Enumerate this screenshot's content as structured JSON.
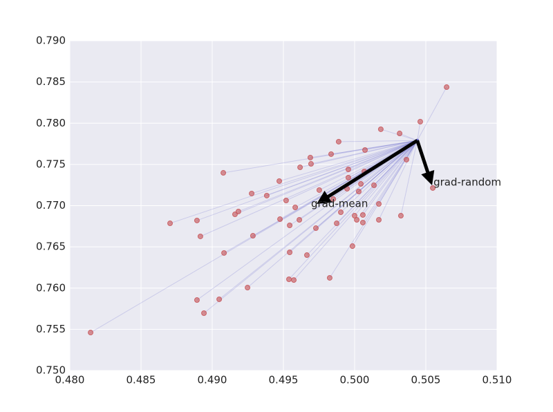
{
  "chart_data": {
    "type": "scatter",
    "xlim": [
      0.48,
      0.51
    ],
    "ylim": [
      0.75,
      0.79
    ],
    "xticks": [
      {
        "value": 0.48,
        "label": "0.480"
      },
      0.485,
      {
        "value": 0.49,
        "label": "0.490"
      },
      0.495,
      {
        "value": 0.5,
        "label": "0.500"
      },
      0.505,
      {
        "value": 0.51,
        "label": "0.510"
      }
    ],
    "yticks": [
      {
        "value": 0.75,
        "label": "0.750"
      },
      0.755,
      {
        "value": 0.76,
        "label": "0.760"
      },
      0.765,
      {
        "value": 0.77,
        "label": "0.770"
      },
      0.775,
      {
        "value": 0.78,
        "label": "0.780"
      },
      0.785,
      {
        "value": 0.79,
        "label": "0.790"
      }
    ],
    "grid": true,
    "color": "#c44e52",
    "line_color": "#6a6acf",
    "center": {
      "x": 0.5044,
      "y": 0.7779
    },
    "x": [
      0.50646,
      0.50461,
      0.50184,
      0.50316,
      0.49888,
      0.50073,
      0.49835,
      0.49689,
      0.50364,
      0.49617,
      0.49694,
      0.49956,
      0.49078,
      0.50068,
      0.49956,
      0.49471,
      0.50044,
      0.50136,
      0.49752,
      0.49947,
      0.50029,
      0.50549,
      0.49277,
      0.49383,
      0.49519,
      0.4985,
      0.5017,
      0.49583,
      0.49184,
      0.4916,
      0.49903,
      0.5,
      0.50325,
      0.50058,
      0.48704,
      0.48893,
      0.49476,
      0.49612,
      0.50015,
      0.5017,
      0.49544,
      0.50058,
      0.49874,
      0.49728,
      0.48917,
      0.49286,
      0.49985,
      0.49083,
      0.49544,
      0.49665,
      0.49539,
      0.49573,
      0.49825,
      0.49248,
      0.49049,
      0.48893,
      0.48942,
      0.48146
    ],
    "y": [
      0.78438,
      0.78019,
      0.77927,
      0.77876,
      0.77776,
      0.77675,
      0.77625,
      0.77583,
      0.77558,
      0.77465,
      0.77507,
      0.7744,
      0.77398,
      0.77415,
      0.7734,
      0.77298,
      0.77264,
      0.77247,
      0.77189,
      0.77205,
      0.77172,
      0.77214,
      0.77147,
      0.77122,
      0.77063,
      0.7708,
      0.77021,
      0.76979,
      0.76929,
      0.76895,
      0.7692,
      0.76878,
      0.76878,
      0.76887,
      0.76786,
      0.7682,
      0.76836,
      0.76828,
      0.76828,
      0.76828,
      0.76761,
      0.76795,
      0.76786,
      0.76727,
      0.76627,
      0.76635,
      0.76509,
      0.76426,
      0.76434,
      0.764,
      0.76107,
      0.76098,
      0.76124,
      0.76006,
      0.75864,
      0.75855,
      0.75696,
      0.75461
    ],
    "arrows": [
      {
        "label": "grad-mean",
        "x": 0.49733,
        "y": 0.77021
      },
      {
        "label": "grad-random",
        "x": 0.50544,
        "y": 0.77247
      }
    ]
  }
}
